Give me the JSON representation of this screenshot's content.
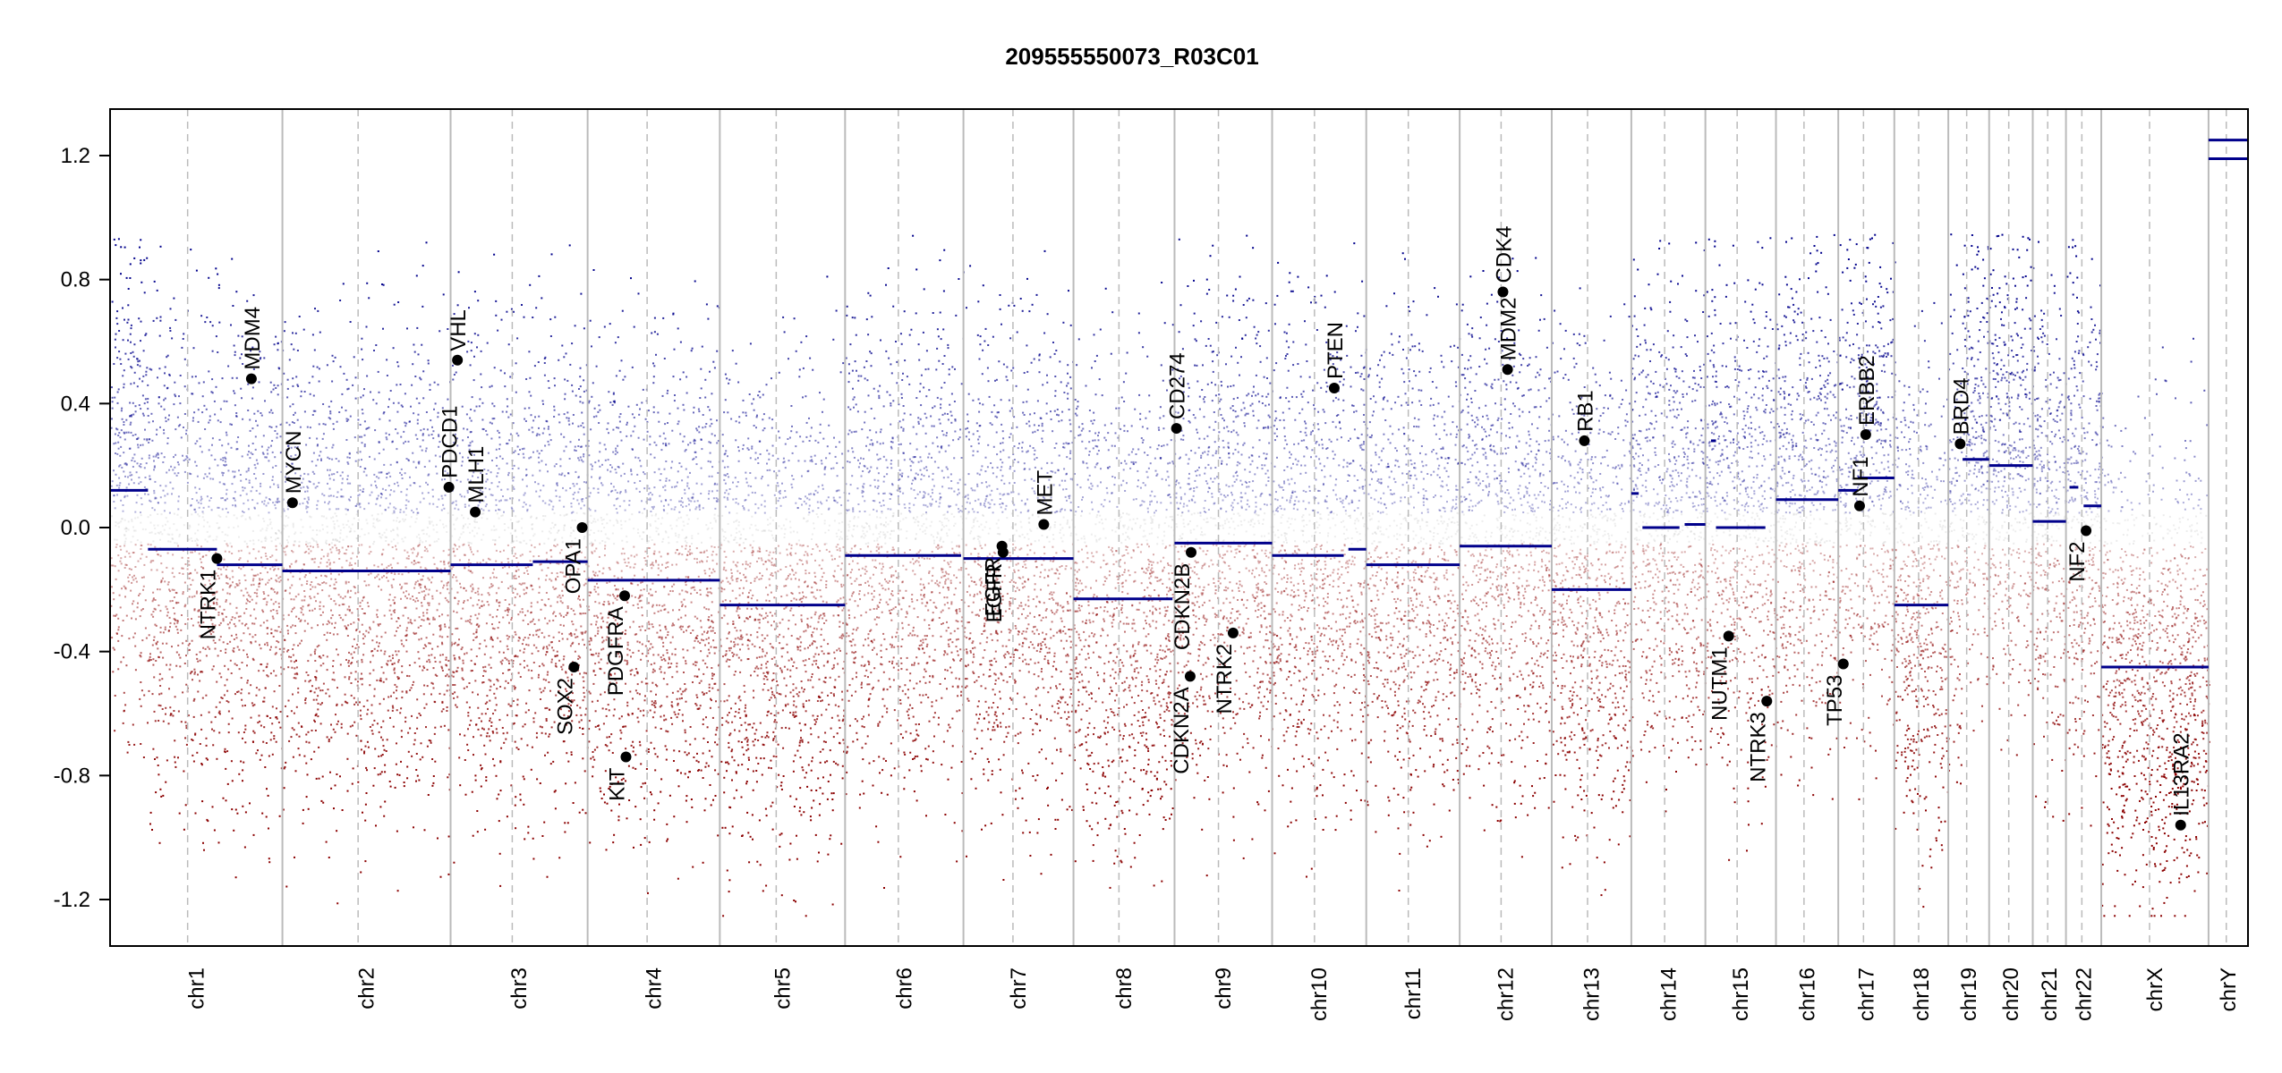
{
  "chart_data": {
    "type": "scatter",
    "title": "209555550073_R03C01",
    "xlabel": "",
    "ylabel": "",
    "ylim": [
      -1.35,
      1.35
    ],
    "yticks": [
      -1.2,
      -0.8,
      -0.4,
      0.0,
      0.4,
      0.8,
      1.2
    ],
    "ytick_labels": [
      "-1.2",
      "-0.8",
      "-0.4",
      "0.0",
      "0.4",
      "0.8",
      "1.2"
    ],
    "grid": false,
    "colors": {
      "gain": "#00008b",
      "loss": "#8b0000",
      "neutral": "#bbbbbb",
      "segment": "#00008b",
      "gene": "#000000",
      "chrom_line": "#bbbbbb",
      "centromere_line": "#bbbbbb"
    },
    "chromosomes": [
      {
        "name": "chr1",
        "length": 249
      },
      {
        "name": "chr2",
        "length": 243
      },
      {
        "name": "chr3",
        "length": 198
      },
      {
        "name": "chr4",
        "length": 191
      },
      {
        "name": "chr5",
        "length": 181
      },
      {
        "name": "chr6",
        "length": 171
      },
      {
        "name": "chr7",
        "length": 159
      },
      {
        "name": "chr8",
        "length": 146
      },
      {
        "name": "chr9",
        "length": 141
      },
      {
        "name": "chr10",
        "length": 136
      },
      {
        "name": "chr11",
        "length": 135
      },
      {
        "name": "chr12",
        "length": 133
      },
      {
        "name": "chr13",
        "length": 115
      },
      {
        "name": "chr14",
        "length": 107
      },
      {
        "name": "chr15",
        "length": 102
      },
      {
        "name": "chr16",
        "length": 90
      },
      {
        "name": "chr17",
        "length": 81
      },
      {
        "name": "chr18",
        "length": 78
      },
      {
        "name": "chr19",
        "length": 59
      },
      {
        "name": "chr20",
        "length": 63
      },
      {
        "name": "chr21",
        "length": 48
      },
      {
        "name": "chr22",
        "length": 51
      },
      {
        "name": "chrX",
        "length": 155
      },
      {
        "name": "chrY",
        "length": 57
      }
    ],
    "segments": [
      {
        "chrom": "chr1",
        "start": 0,
        "end": 0.22,
        "value": 0.12
      },
      {
        "chrom": "chr1",
        "start": 0.22,
        "end": 0.62,
        "value": -0.07
      },
      {
        "chrom": "chr1",
        "start": 0.62,
        "end": 1.0,
        "value": -0.12
      },
      {
        "chrom": "chr2",
        "start": 0,
        "end": 1.0,
        "value": -0.14
      },
      {
        "chrom": "chr3",
        "start": 0,
        "end": 0.6,
        "value": -0.12
      },
      {
        "chrom": "chr3",
        "start": 0.6,
        "end": 1.0,
        "value": -0.11
      },
      {
        "chrom": "chr4",
        "start": 0,
        "end": 1.0,
        "value": -0.17
      },
      {
        "chrom": "chr5",
        "start": 0,
        "end": 1.0,
        "value": -0.25
      },
      {
        "chrom": "chr6",
        "start": 0,
        "end": 0.98,
        "value": -0.09
      },
      {
        "chrom": "chr7",
        "start": 0,
        "end": 1.0,
        "value": -0.1
      },
      {
        "chrom": "chr8",
        "start": 0,
        "end": 0.98,
        "value": -0.23
      },
      {
        "chrom": "chr9",
        "start": 0,
        "end": 1.0,
        "value": -0.05
      },
      {
        "chrom": "chr10",
        "start": 0,
        "end": 0.76,
        "value": -0.09
      },
      {
        "chrom": "chr10",
        "start": 0.81,
        "end": 1.0,
        "value": -0.07
      },
      {
        "chrom": "chr11",
        "start": 0,
        "end": 1.0,
        "value": -0.12
      },
      {
        "chrom": "chr12",
        "start": 0,
        "end": 1.0,
        "value": -0.06
      },
      {
        "chrom": "chr13",
        "start": 0,
        "end": 1.0,
        "value": -0.2
      },
      {
        "chrom": "chr14",
        "start": 0,
        "end": 0.1,
        "value": 0.11
      },
      {
        "chrom": "chr14",
        "start": 0.15,
        "end": 0.65,
        "value": 0.0
      },
      {
        "chrom": "chr14",
        "start": 0.72,
        "end": 1.0,
        "value": 0.01
      },
      {
        "chrom": "chr15",
        "start": 0.08,
        "end": 0.15,
        "value": 0.28
      },
      {
        "chrom": "chr15",
        "start": 0.15,
        "end": 0.85,
        "value": 0.0
      },
      {
        "chrom": "chr16",
        "start": 0,
        "end": 1.0,
        "value": 0.09
      },
      {
        "chrom": "chr17",
        "start": 0,
        "end": 0.35,
        "value": 0.12
      },
      {
        "chrom": "chr17",
        "start": 0.35,
        "end": 1.0,
        "value": 0.16
      },
      {
        "chrom": "chr18",
        "start": 0,
        "end": 1.0,
        "value": -0.25
      },
      {
        "chrom": "chr19",
        "start": 0.35,
        "end": 1.0,
        "value": 0.22
      },
      {
        "chrom": "chr20",
        "start": 0,
        "end": 1.0,
        "value": 0.2
      },
      {
        "chrom": "chr21",
        "start": 0,
        "end": 1.0,
        "value": 0.02
      },
      {
        "chrom": "chr22",
        "start": 0.5,
        "end": 1.0,
        "value": 0.07
      },
      {
        "chrom": "chr22",
        "start": 0.1,
        "end": 0.35,
        "value": 0.13
      },
      {
        "chrom": "chrX",
        "start": 0,
        "end": 1.0,
        "value": -0.45
      },
      {
        "chrom": "chrY",
        "start": 0,
        "end": 1.0,
        "value": 1.19
      },
      {
        "chrom": "chrY",
        "start": 0,
        "end": 1.0,
        "value": 1.25
      }
    ],
    "genes": [
      {
        "name": "NTRK1",
        "chrom": "chr1",
        "pos": 0.62,
        "value": -0.1,
        "label_side": "below"
      },
      {
        "name": "MDM4",
        "chrom": "chr1",
        "pos": 0.82,
        "value": 0.48,
        "label_side": "above"
      },
      {
        "name": "MYCN",
        "chrom": "chr2",
        "pos": 0.06,
        "value": 0.08,
        "label_side": "above"
      },
      {
        "name": "PDCD1",
        "chrom": "chr2",
        "pos": 0.99,
        "value": 0.13,
        "label_side": "above"
      },
      {
        "name": "VHL",
        "chrom": "chr3",
        "pos": 0.05,
        "value": 0.54,
        "label_side": "above"
      },
      {
        "name": "MLH1",
        "chrom": "chr3",
        "pos": 0.18,
        "value": 0.05,
        "label_side": "above"
      },
      {
        "name": "SOX2",
        "chrom": "chr3",
        "pos": 0.9,
        "value": -0.45,
        "label_side": "below"
      },
      {
        "name": "OPA1",
        "chrom": "chr3",
        "pos": 0.96,
        "value": 0.0,
        "label_side": "below"
      },
      {
        "name": "PDGFRA",
        "chrom": "chr4",
        "pos": 0.28,
        "value": -0.22,
        "label_side": "below"
      },
      {
        "name": "KIT",
        "chrom": "chr4",
        "pos": 0.29,
        "value": -0.74,
        "label_side": "below"
      },
      {
        "name": "EGFR",
        "chrom": "chr7",
        "pos": 0.35,
        "value": -0.06,
        "label_side": "below"
      },
      {
        "name": "EGFR",
        "chrom": "chr7",
        "pos": 0.36,
        "value": -0.08,
        "label_side": "below"
      },
      {
        "name": "MET",
        "chrom": "chr7",
        "pos": 0.73,
        "value": 0.01,
        "label_side": "above"
      },
      {
        "name": "CD274",
        "chrom": "chr9",
        "pos": 0.02,
        "value": 0.32,
        "label_side": "above"
      },
      {
        "name": "CDKN2A",
        "chrom": "chr9",
        "pos": 0.16,
        "value": -0.48,
        "label_side": "below"
      },
      {
        "name": "CDKN2B",
        "chrom": "chr9",
        "pos": 0.17,
        "value": -0.08,
        "label_side": "below"
      },
      {
        "name": "NTRK2",
        "chrom": "chr9",
        "pos": 0.6,
        "value": -0.34,
        "label_side": "below"
      },
      {
        "name": "PTEN",
        "chrom": "chr10",
        "pos": 0.66,
        "value": 0.45,
        "label_side": "above"
      },
      {
        "name": "MDM2",
        "chrom": "chr12",
        "pos": 0.52,
        "value": 0.51,
        "label_side": "above"
      },
      {
        "name": "CDK4",
        "chrom": "chr12",
        "pos": 0.47,
        "value": 0.76,
        "label_side": "above"
      },
      {
        "name": "RB1",
        "chrom": "chr13",
        "pos": 0.41,
        "value": 0.28,
        "label_side": "above"
      },
      {
        "name": "NUTM1",
        "chrom": "chr15",
        "pos": 0.33,
        "value": -0.35,
        "label_side": "below"
      },
      {
        "name": "NTRK3",
        "chrom": "chr15",
        "pos": 0.87,
        "value": -0.56,
        "label_side": "below"
      },
      {
        "name": "TP53",
        "chrom": "chr17",
        "pos": 0.09,
        "value": -0.44,
        "label_side": "below"
      },
      {
        "name": "NF1",
        "chrom": "chr17",
        "pos": 0.38,
        "value": 0.07,
        "label_side": "above"
      },
      {
        "name": "ERBB2",
        "chrom": "chr17",
        "pos": 0.49,
        "value": 0.3,
        "label_side": "above"
      },
      {
        "name": "BRD4",
        "chrom": "chr19",
        "pos": 0.29,
        "value": 0.27,
        "label_side": "above"
      },
      {
        "name": "NF2",
        "chrom": "chr22",
        "pos": 0.57,
        "value": -0.01,
        "label_side": "below"
      },
      {
        "name": "IL13RA2",
        "chrom": "chrX",
        "pos": 0.74,
        "value": -0.96,
        "label_side": "above"
      }
    ]
  }
}
